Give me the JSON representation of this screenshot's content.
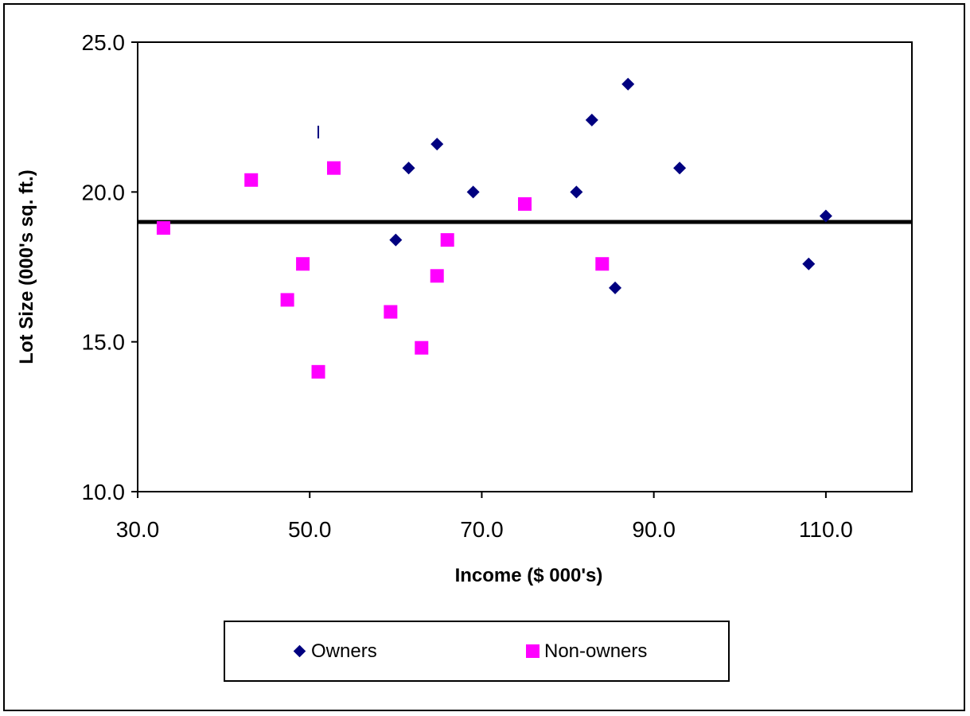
{
  "chart_data": {
    "type": "scatter",
    "title": "",
    "xlabel": "Income ($ 000's)",
    "ylabel": "Lot Size (000's sq. ft.)",
    "xlim": [
      30,
      120
    ],
    "ylim": [
      10,
      25
    ],
    "xticks": [
      "30.0",
      "50.0",
      "70.0",
      "90.0",
      "110.0"
    ],
    "xtick_values": [
      30,
      50,
      70,
      90,
      110
    ],
    "yticks": [
      "10.0",
      "15.0",
      "20.0",
      "25.0"
    ],
    "ytick_values": [
      10,
      15,
      20,
      25
    ],
    "grid": false,
    "legend_placement": "bottom",
    "series": [
      {
        "name": "Owners",
        "marker": "diamond",
        "color": "#000080",
        "points": [
          [
            60.0,
            18.4
          ],
          [
            61.5,
            20.8
          ],
          [
            64.8,
            21.6
          ],
          [
            69.0,
            20.0
          ],
          [
            81.0,
            20.0
          ],
          [
            82.8,
            22.4
          ],
          [
            87.0,
            23.6
          ],
          [
            85.5,
            16.8
          ],
          [
            93.0,
            20.8
          ],
          [
            108.0,
            17.6
          ],
          [
            110.0,
            19.2
          ]
        ]
      },
      {
        "name": "Non-owners",
        "marker": "square",
        "color": "#ff00ff",
        "points": [
          [
            33.0,
            18.8
          ],
          [
            43.2,
            20.4
          ],
          [
            47.4,
            16.4
          ],
          [
            49.2,
            17.6
          ],
          [
            51.0,
            14.0
          ],
          [
            52.8,
            20.8
          ],
          [
            59.4,
            16.0
          ],
          [
            63.0,
            14.8
          ],
          [
            64.8,
            17.2
          ],
          [
            66.0,
            18.4
          ],
          [
            75.0,
            19.6
          ],
          [
            84.0,
            17.6
          ]
        ]
      }
    ],
    "reference_line": {
      "y": 19.0,
      "color": "#000000"
    },
    "annotation": {
      "text": "I",
      "x": 51.0,
      "y": 22.0,
      "color": "#000080"
    }
  },
  "legend": {
    "owners_label": "Owners",
    "nonowners_label": "Non-owners"
  }
}
